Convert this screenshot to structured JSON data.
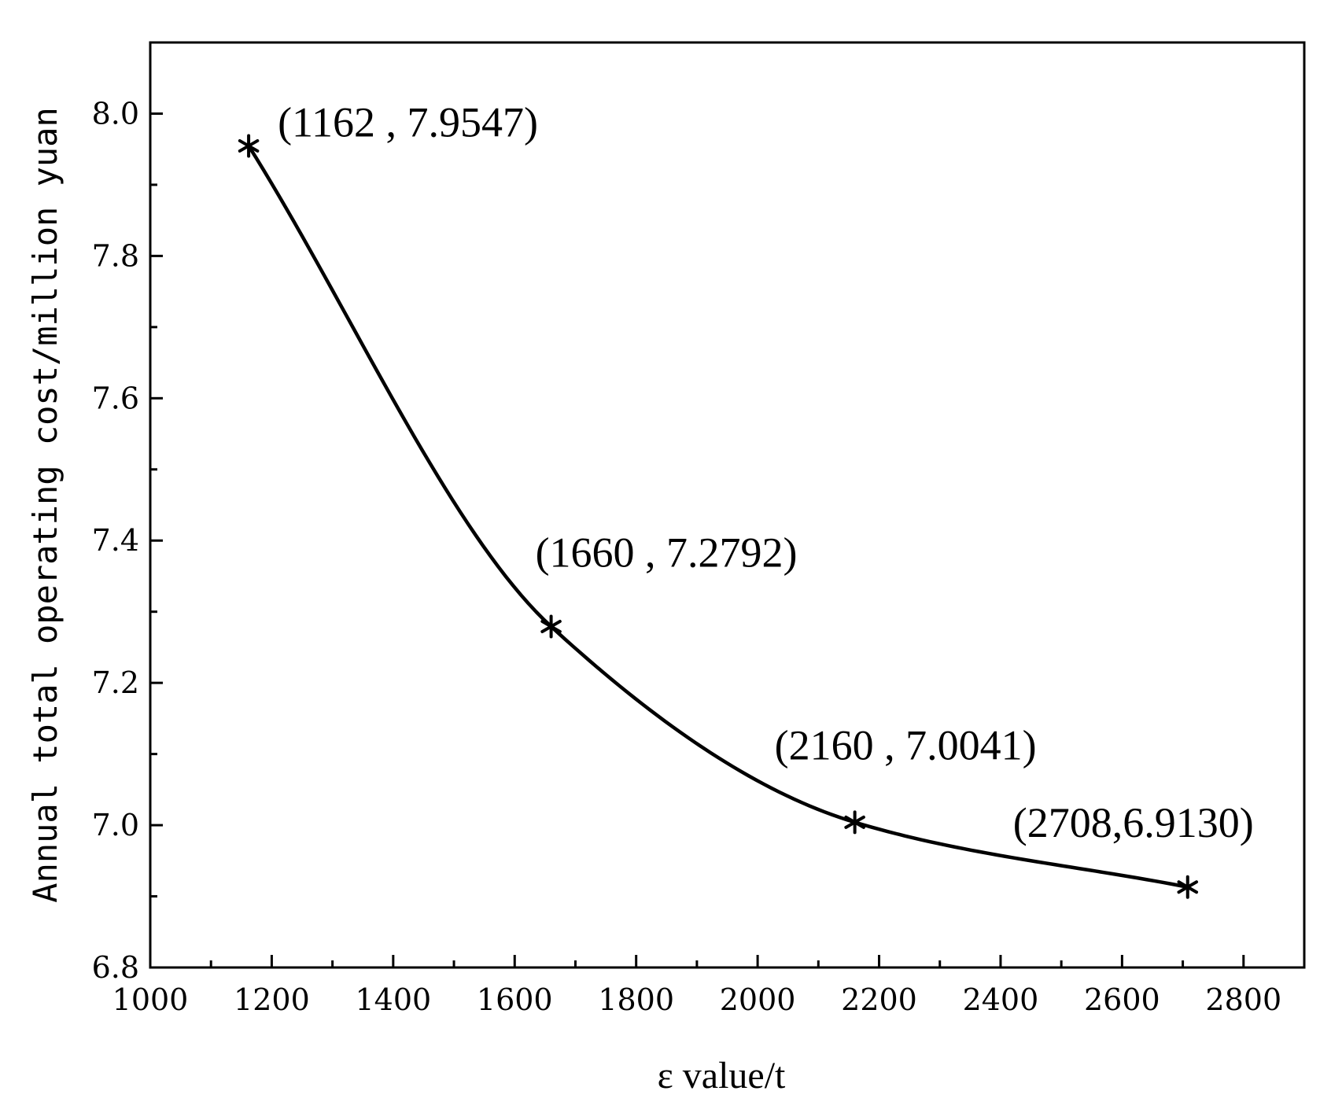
{
  "chart_data": {
    "type": "line",
    "title": "",
    "xlabel": "ε value/t",
    "ylabel": "Annual total operating cost/million yuan",
    "xlim": [
      1000,
      2900
    ],
    "ylim": [
      6.8,
      8.1
    ],
    "x_ticks": [
      1000,
      1200,
      1400,
      1600,
      1800,
      2000,
      2200,
      2400,
      2600,
      2800
    ],
    "x_tick_labels": [
      "1000",
      "1200",
      "1400",
      "1600",
      "1800",
      "2000",
      "2200",
      "2400",
      "2600",
      "2800"
    ],
    "x_minor_ticks": [
      1100,
      1300,
      1500,
      1700,
      1900,
      2100,
      2300,
      2500,
      2700
    ],
    "y_ticks": [
      6.8,
      7.0,
      7.2,
      7.4,
      7.6,
      7.8,
      8.0
    ],
    "y_tick_labels": [
      "6.8",
      "7.0",
      "7.2",
      "7.4",
      "7.6",
      "7.8",
      "8.0"
    ],
    "y_minor_ticks": [
      6.9,
      7.1,
      7.3,
      7.5,
      7.7,
      7.9
    ],
    "grid": false,
    "legend": "none",
    "series": [
      {
        "marker": "asterisk",
        "color": "#000000",
        "points": [
          {
            "x": 1162,
            "y": 7.9547,
            "label": "(1162 , 7.9547)"
          },
          {
            "x": 1660,
            "y": 7.2792,
            "label": "(1660 , 7.2792)"
          },
          {
            "x": 2160,
            "y": 7.0041,
            "label": "(2160 , 7.0041)"
          },
          {
            "x": 2708,
            "y": 6.913,
            "label": "(2708,6.9130)"
          }
        ]
      }
    ]
  }
}
